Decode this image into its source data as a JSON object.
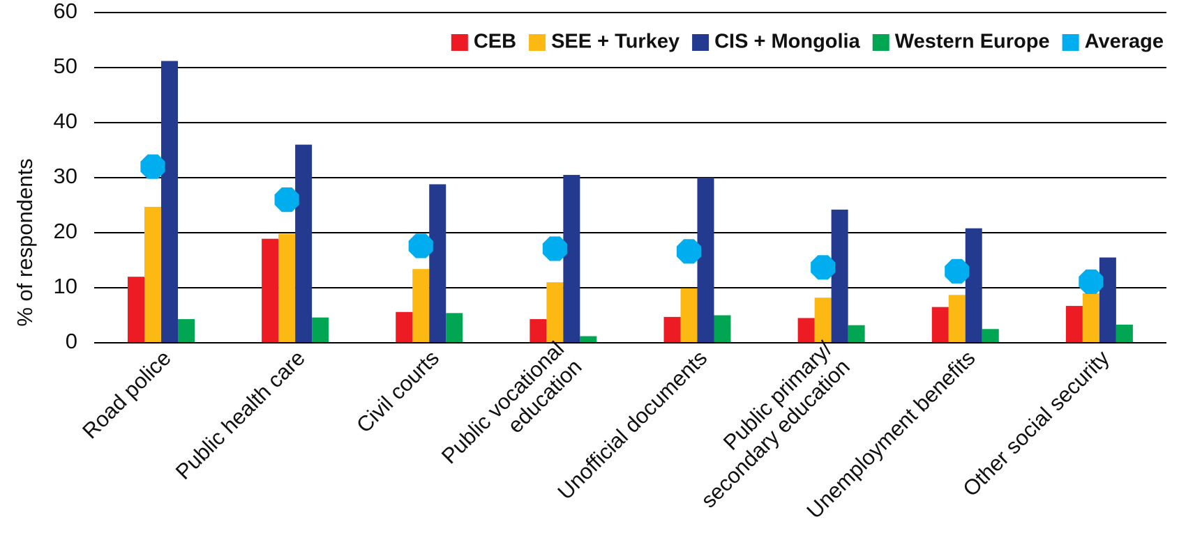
{
  "chart_data": {
    "type": "bar",
    "y_label": "% of respondents",
    "categories": [
      "Road police",
      "Public health care",
      "Civil courts",
      "Public vocational\neducation",
      "Unofficial documents",
      "Public primary/\nsecondary education",
      "Unemployment benefits",
      "Other social security"
    ],
    "series": [
      {
        "name": "CEB",
        "color": "#ed1c24",
        "values": [
          12,
          18.9,
          5.6,
          4.3,
          4.7,
          4.5,
          6.5,
          6.7
        ]
      },
      {
        "name": "SEE + Turkey",
        "color": "#fdb913",
        "values": [
          24.7,
          19.8,
          13.4,
          11,
          9.9,
          8.2,
          8.7,
          9
        ]
      },
      {
        "name": "CIS + Mongolia",
        "color": "#233a8e",
        "values": [
          51.2,
          36,
          28.8,
          30.5,
          30,
          24.2,
          20.8,
          15.5
        ]
      },
      {
        "name": "Western Europe",
        "color": "#00a651",
        "values": [
          4.3,
          4.6,
          5.4,
          1.2,
          5,
          3.2,
          2.5,
          3.3
        ]
      },
      {
        "name": "Average",
        "color": "#00aeef",
        "marker": "point",
        "values": [
          32,
          26,
          17.6,
          17.1,
          16.6,
          13.7,
          13,
          11.1
        ]
      }
    ],
    "ylim": [
      0,
      60
    ],
    "yticks": [
      0,
      10,
      20,
      30,
      40,
      50,
      60
    ],
    "grid": true,
    "legend": "top-right"
  }
}
